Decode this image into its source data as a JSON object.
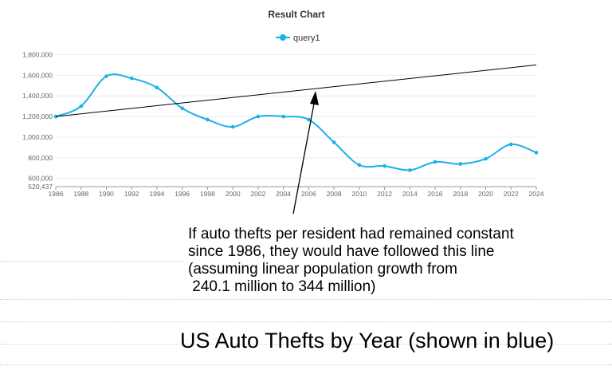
{
  "chart_data": {
    "type": "line",
    "title": "Result Chart",
    "series": [
      {
        "name": "query1",
        "color": "#1ab0e8",
        "x": [
          1986,
          1988,
          1990,
          1992,
          1994,
          1996,
          1998,
          2000,
          2002,
          2004,
          2006,
          2008,
          2010,
          2012,
          2014,
          2016,
          2018,
          2020,
          2022,
          2024
        ],
        "values": [
          1200000,
          1300000,
          1590000,
          1570000,
          1480000,
          1280000,
          1170000,
          1100000,
          1200000,
          1200000,
          1170000,
          950000,
          730000,
          720000,
          680000,
          760000,
          740000,
          790000,
          930000,
          850000
        ]
      }
    ],
    "reference_line": {
      "color": "#000000",
      "x": [
        1986,
        2024
      ],
      "values": [
        1200000,
        1700000
      ]
    },
    "x_ticks": [
      "1986",
      "1988",
      "1990",
      "1992",
      "1994",
      "1996",
      "1998",
      "2000",
      "2002",
      "2004",
      "2006",
      "2008",
      "2010",
      "2012",
      "2014",
      "2016",
      "2018",
      "2020",
      "2022",
      "2024"
    ],
    "y_ticks": [
      "1,800,000",
      "1,600,000",
      "1,400,000",
      "1,200,000",
      "1,000,000",
      "800,000",
      "600,000",
      "520,437"
    ],
    "y_tick_values": [
      1800000,
      1600000,
      1400000,
      1200000,
      1000000,
      800000,
      600000,
      520437
    ],
    "xlim": [
      1986,
      2024
    ],
    "ylim": [
      520437,
      1850000
    ],
    "grid": true,
    "legend_position": "top-center"
  },
  "annotation": {
    "lines": [
      "If auto thefts per resident had remained constant",
      "since 1986, they would have followed this line",
      "(assuming linear population growth from",
      " 240.1 million to 344 million)"
    ]
  },
  "caption": "US Auto Thefts by Year (shown in blue)"
}
